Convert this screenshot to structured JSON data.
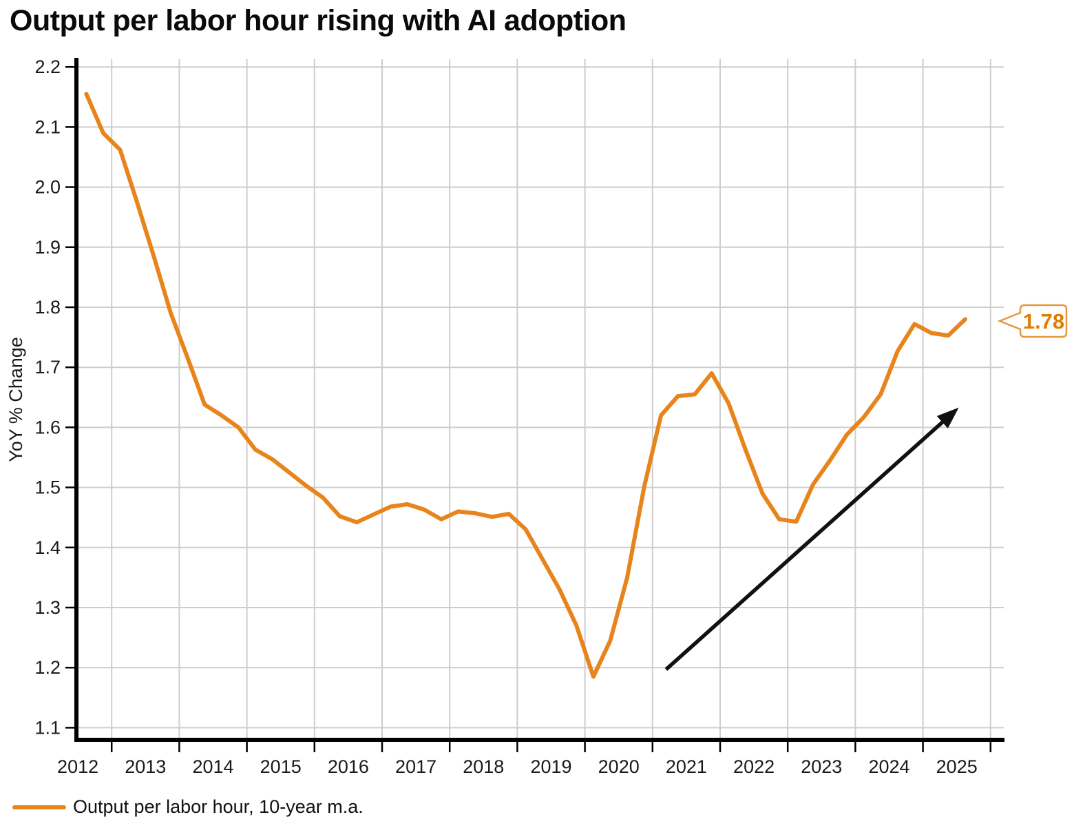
{
  "title": "Output per labor hour rising with AI adoption",
  "colors": {
    "accent": "#E8841C",
    "callout_border": "#E5983F",
    "callout_text": "#E07C00",
    "grid": "#CDCDCD",
    "axis": "#000000",
    "tick_text": "#1A1A1A",
    "title_text": "#0A0A0A",
    "annotation": "#111111"
  },
  "legend": {
    "label": "Output per labor hour, 10-year m.a."
  },
  "callout": {
    "value": "1.78"
  },
  "chart_data": {
    "type": "line",
    "title": "Output per labor hour rising with AI adoption",
    "xlabel": "",
    "ylabel": "YoY % Change",
    "grid": true,
    "legend_position": "bottom-left",
    "xlim": [
      2012.5,
      2026.2
    ],
    "ylim": [
      1.08,
      2.21
    ],
    "x_tick_labels": [
      "2012",
      "2013",
      "2014",
      "2015",
      "2016",
      "2017",
      "2018",
      "2019",
      "2020",
      "2021",
      "2022",
      "2023",
      "2024",
      "2025"
    ],
    "y_tick_labels": [
      "2.2",
      "2.1",
      "2.0",
      "1.9",
      "1.8",
      "1.7",
      "1.6",
      "1.5",
      "1.4",
      "1.3",
      "1.2",
      "1.1"
    ],
    "end_value_label": "1.78",
    "series": [
      {
        "name": "Output per labor hour, 10-year m.a.",
        "x": [
          2012.625,
          2012.875,
          2013.125,
          2013.375,
          2013.625,
          2013.875,
          2014.125,
          2014.375,
          2014.625,
          2014.875,
          2015.125,
          2015.375,
          2015.625,
          2015.875,
          2016.125,
          2016.375,
          2016.625,
          2016.875,
          2017.125,
          2017.375,
          2017.625,
          2017.875,
          2018.125,
          2018.375,
          2018.625,
          2018.875,
          2019.125,
          2019.375,
          2019.625,
          2019.875,
          2020.125,
          2020.375,
          2020.625,
          2020.875,
          2021.125,
          2021.375,
          2021.625,
          2021.875,
          2022.125,
          2022.375,
          2022.625,
          2022.875,
          2023.125,
          2023.375,
          2023.625,
          2023.875,
          2024.125,
          2024.375,
          2024.625,
          2024.875,
          2025.125,
          2025.375,
          2025.625
        ],
        "values": [
          2.155,
          2.09,
          2.062,
          1.975,
          1.884,
          1.79,
          1.715,
          1.638,
          1.62,
          1.6,
          1.563,
          1.547,
          1.525,
          1.503,
          1.483,
          1.452,
          1.442,
          1.455,
          1.468,
          1.472,
          1.463,
          1.447,
          1.46,
          1.457,
          1.451,
          1.456,
          1.43,
          1.38,
          1.33,
          1.27,
          1.185,
          1.245,
          1.35,
          1.5,
          1.62,
          1.652,
          1.655,
          1.69,
          1.64,
          1.563,
          1.49,
          1.447,
          1.443,
          1.505,
          1.545,
          1.588,
          1.617,
          1.655,
          1.727,
          1.772,
          1.757,
          1.753,
          1.78
        ]
      }
    ],
    "annotation_arrow": {
      "from": {
        "x": 2021.2,
        "y": 1.197
      },
      "to": {
        "x": 2025.53,
        "y": 1.633
      }
    }
  }
}
